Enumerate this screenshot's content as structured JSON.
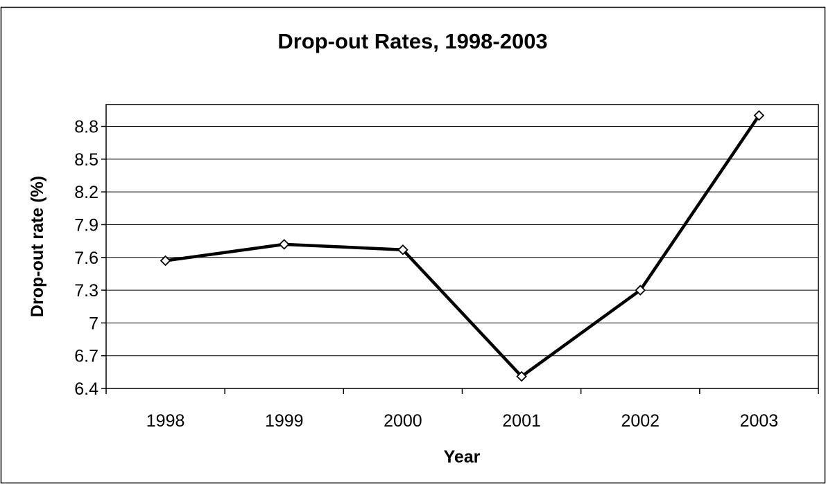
{
  "chart_data": {
    "type": "line",
    "title": "Drop-out Rates, 1998-2003",
    "xlabel": "Year",
    "ylabel": "Drop-out rate (%)",
    "categories": [
      "1998",
      "1999",
      "2000",
      "2001",
      "2002",
      "2003"
    ],
    "series": [
      {
        "values": [
          7.57,
          7.72,
          7.67,
          6.51,
          7.3,
          8.9
        ]
      }
    ],
    "ylim": [
      6.4,
      9.0
    ],
    "yticks": [
      "6.4",
      "6.7",
      "7",
      "7.3",
      "7.6",
      "7.9",
      "8.2",
      "8.5",
      "8.8"
    ],
    "grid": "horizontal",
    "legend": "none",
    "marker": "diamond",
    "colors": {
      "line": "#000000",
      "marker_fill": "#ffffff",
      "grid": "#000000",
      "background": "#ffffff"
    }
  }
}
